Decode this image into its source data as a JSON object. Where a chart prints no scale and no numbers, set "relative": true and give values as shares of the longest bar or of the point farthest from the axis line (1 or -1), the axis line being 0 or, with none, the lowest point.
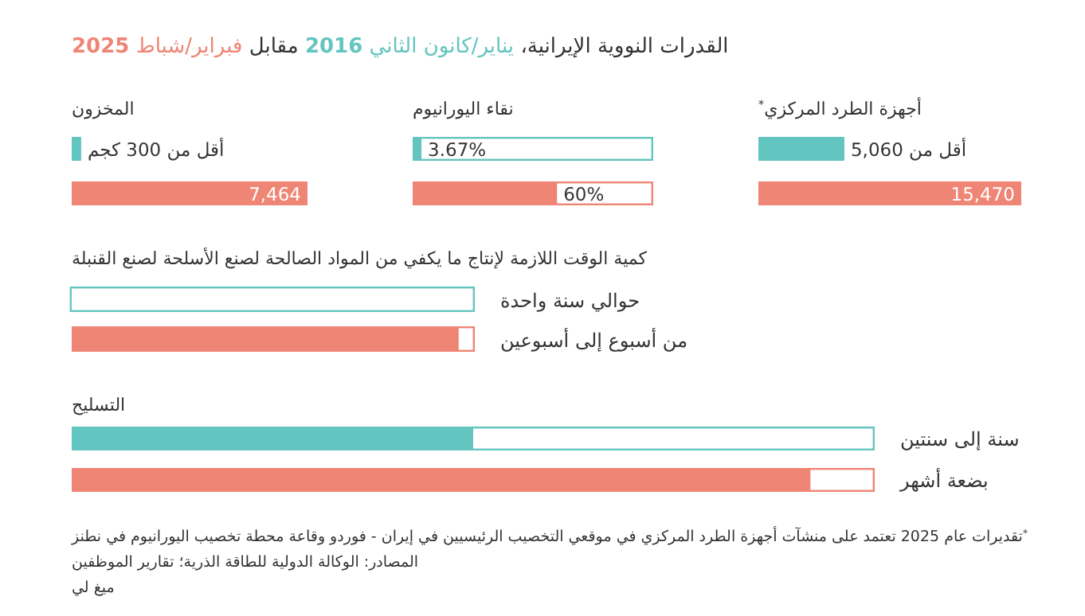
{
  "chart_data": [
    {
      "type": "other",
      "title": "القدرات النووية الإيرانية،",
      "annotations": [
        "مقابل"
      ],
      "series": [
        {
          "name": "يناير/كانون الثاني **2016**",
          "color": "#63c5bf"
        },
        {
          "name": "فبراير/شباط **2025**",
          "color": "#ef8574"
        }
      ]
    },
    {
      "type": "bar",
      "orientation": "horizontal",
      "title": "أجهزة الطرد المركزي$^{*}$",
      "categories": [
        null,
        null
      ],
      "values": [
        5060,
        15470
      ],
      "colors": [
        "#63c5bf",
        "#ef8574"
      ],
      "value_labels": [
        "أقل من 5,060",
        "15,470"
      ],
      "xlim": [
        0,
        15470
      ]
    },
    {
      "type": "bar",
      "orientation": "horizontal",
      "stacked": true,
      "title": "نقاء اليورانيوم",
      "categories": [
        null,
        null
      ],
      "xlim": [
        0,
        100
      ],
      "series": [
        {
          "colors": [
            "#63c5bf",
            "#ef8574"
          ],
          "values": [
            3.67,
            60
          ],
          "value_labels": [
            "3.67%",
            "60%"
          ]
        },
        {
          "color": "#ffffff",
          "values": [
            96.33,
            40
          ]
        }
      ]
    },
    {
      "type": "bar",
      "orientation": "horizontal",
      "title": "المخزون",
      "categories": [
        null,
        null
      ],
      "values": [
        300,
        7464
      ],
      "colors": [
        "#63c5bf",
        "#ef8574"
      ],
      "value_labels": [
        "أقل من 300 كجم",
        "7,464"
      ],
      "xlim": [
        0,
        7464
      ]
    },
    {
      "type": "bar",
      "orientation": "horizontal",
      "stacked": true,
      "relative": true,
      "title": "كمية الوقت اللازمة لإنتاج ما يكفي من المواد الصالحة لصنع الأسلحة لصنع القنبلة",
      "categories": [
        "حوالي سنة واحدة",
        "من أسبوع إلى أسبوعين"
      ],
      "series": [
        {
          "colors": [
            "#63c5bf",
            "#ef8574"
          ],
          "values": [
            0,
            0.96
          ]
        },
        {
          "color": "#ffffff",
          "values": [
            1,
            0.04
          ]
        }
      ]
    },
    {
      "type": "bar",
      "orientation": "horizontal",
      "stacked": true,
      "relative": true,
      "title": "التسليح",
      "categories": [
        "سنة إلى سنتين",
        "بضعة أشهر"
      ],
      "series": [
        {
          "colors": [
            "#63c5bf",
            "#ef8574"
          ],
          "values": [
            0.5,
            0.92
          ]
        },
        {
          "color": "#ffffff",
          "values": [
            0.5,
            0.08
          ]
        }
      ],
      "annotations": [
        "$^{*}$تقديرات عام 2025 تعتمد على منشآت أجهزة الطرد المركزي في موقعي التخصيب الرئيسيين في إيران - فوردو وقاعة محطة تخصيب اليورانيوم في نطنز",
        "المصادر: الوكالة الدولية للطاقة الذرية؛ تقارير الموظفين",
        "ميغ لي"
      ]
    }
  ]
}
